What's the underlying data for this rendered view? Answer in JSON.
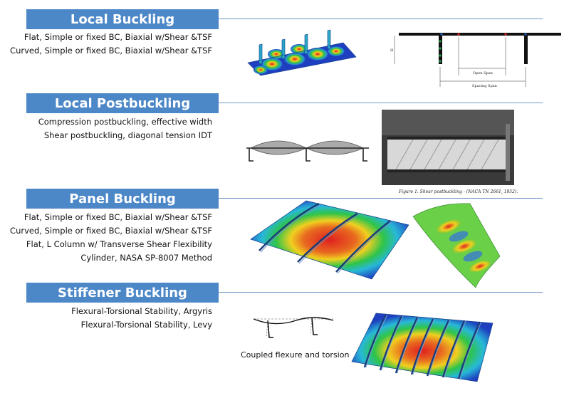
{
  "sections": [
    {
      "title": "Local Buckling",
      "items": [
        "Flat, Simple or fixed BC, Biaxial w/Shear &TSF",
        "Curved, Simple or fixed BC, Biaxial w/Shear &TSF"
      ]
    },
    {
      "title": "Local Postbuckling",
      "items": [
        "Compression postbuckling, effective width",
        "Shear postbuckling, diagonal tension IDT"
      ]
    },
    {
      "title": "Panel Buckling",
      "items": [
        "Flat, Simple or fixed BC, Biaxial w/Shear &TSF",
        "Curved, Simple or fixed BC, Biaxial w/Shear &TSF",
        "Flat, L Column w/ Transverse Shear Flexibility",
        "Cylinder, NASA SP-8007 Method"
      ]
    },
    {
      "title": "Stiffener Buckling",
      "items": [
        "Flexural-Torsional Stability, Argyris",
        "Flexural-Torsional Stability, Levy"
      ]
    }
  ],
  "figures": {
    "open_span_label": "Open Span",
    "spacing_span_label": "Spacing Span",
    "height_label": "H",
    "photo_caption": "Figure 1. Shear postbuckling - (NACA TN 2661, 1952).",
    "coupled_label": "Coupled flexure and torsion"
  },
  "colors": {
    "banner": "#4c87c8",
    "rule": "#6d96c6",
    "fea_low": "#1e3fbf",
    "fea_mid": "#2ec44a",
    "fea_high": "#e02020"
  }
}
